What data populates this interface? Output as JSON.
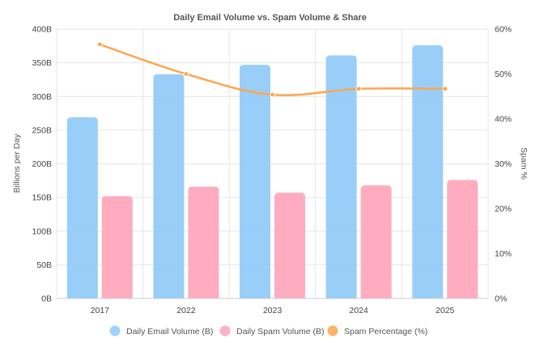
{
  "chart_data": {
    "type": "bar",
    "title": "Daily Email Volume vs. Spam Volume & Share",
    "categories": [
      "2017",
      "2022",
      "2023",
      "2024",
      "2025"
    ],
    "series": [
      {
        "name": "Daily Email Volume (B)",
        "type": "bar",
        "axis": "left",
        "values": [
          269,
          333,
          347,
          361,
          376
        ],
        "color": "#90caf9"
      },
      {
        "name": "Daily Spam Volume (B)",
        "type": "bar",
        "axis": "left",
        "values": [
          152,
          166,
          157,
          168,
          176
        ],
        "color": "#ffa5bc"
      },
      {
        "name": "Spam Percentage (%)",
        "type": "line",
        "axis": "right",
        "values": [
          56.6,
          50.0,
          45.4,
          46.7,
          46.7
        ],
        "color": "#ffa64d"
      }
    ],
    "ylabel": "Billions per Day",
    "y2label": "Spam %",
    "ylim": [
      0,
      400
    ],
    "y2lim": [
      0,
      60
    ],
    "yticks": [
      "0B",
      "50B",
      "100B",
      "150B",
      "200B",
      "250B",
      "300B",
      "350B",
      "400B"
    ],
    "y2ticks": [
      "0%",
      "10%",
      "20%",
      "30%",
      "40%",
      "50%",
      "60%"
    ],
    "grid": true,
    "legend_position": "bottom"
  }
}
